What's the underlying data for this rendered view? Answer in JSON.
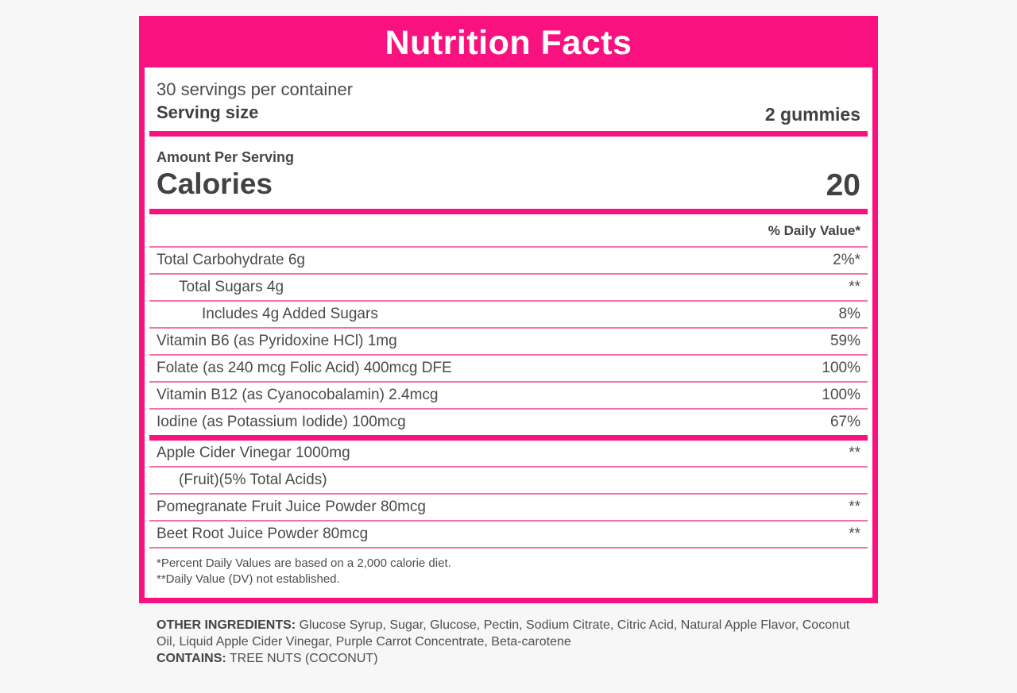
{
  "label": {
    "title": "Nutrition Facts",
    "servings_per_container": "30 servings per container",
    "serving_size_label": "Serving size",
    "serving_size_value": "2 gummies",
    "amount_per_serving": "Amount Per Serving",
    "calories_label": "Calories",
    "calories_value": "20",
    "daily_value_header": "% Daily Value*",
    "rows": [
      {
        "name": "Total Carbohydrate 6g",
        "value": "2%*"
      },
      {
        "name": "Total Sugars 4g",
        "value": "**"
      },
      {
        "name": "Includes 4g Added Sugars",
        "value": "8%"
      },
      {
        "name": "Vitamin B6 (as Pyridoxine HCl) 1mg",
        "value": "59%"
      },
      {
        "name": "Folate (as 240 mcg Folic Acid) 400mcg DFE",
        "value": "100%"
      },
      {
        "name": "Vitamin B12 (as Cyanocobalamin) 2.4mcg",
        "value": "100%"
      },
      {
        "name": "Iodine (as Potassium Iodide) 100mcg",
        "value": "67%"
      },
      {
        "name": "Apple Cider Vinegar 1000mg",
        "value": "**"
      },
      {
        "name": "(Fruit)(5% Total Acids)",
        "value": ""
      },
      {
        "name": "Pomegranate Fruit Juice Powder 80mcg",
        "value": "**"
      },
      {
        "name": "Beet Root Juice Powder 80mcg",
        "value": "**"
      }
    ],
    "footnotes": {
      "line1": "*Percent Daily Values are based on a 2,000 calorie diet.",
      "line2": "**Daily Value (DV) not established."
    }
  },
  "below": {
    "other_ingredients_label": "OTHER INGREDIENTS:",
    "other_ingredients_text": " Glucose Syrup, Sugar, Glucose, Pectin, Sodium Citrate, Citric Acid, Natural Apple Flavor, Coconut Oil, Liquid Apple Cider Vinegar, Purple Carrot Concentrate, Beta-carotene",
    "contains_label": "CONTAINS:",
    "contains_text": " TREE NUTS (COCONUT)"
  },
  "colors": {
    "accent_pink": "#f9127f",
    "separator_pink": "#f470ac",
    "background": "#f7f7f7",
    "text": "#4a4a4a"
  }
}
